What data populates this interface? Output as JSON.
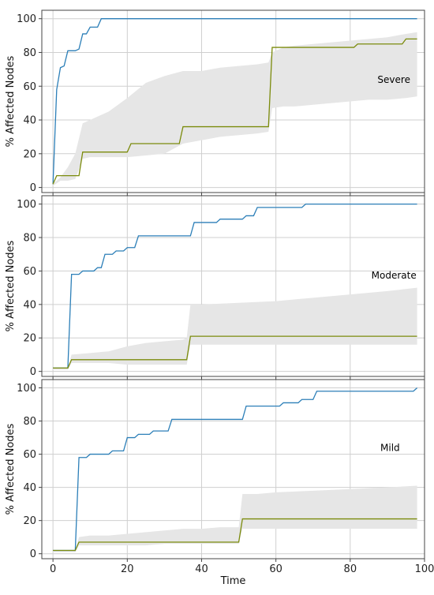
{
  "colors": {
    "blue": "#2c7fb8",
    "olive": "#7b8b0c",
    "band": "#e6e6e6",
    "grid": "#cfcfcf",
    "frame": "#444444"
  },
  "chart_data": [
    {
      "type": "line",
      "annotation": "Severe",
      "ylabel": "% Affected Nodes",
      "xlim": [
        -3,
        100
      ],
      "ylim": [
        -3,
        105
      ],
      "xticks": [
        0,
        20,
        40,
        60,
        80,
        100
      ],
      "yticks": [
        0,
        20,
        40,
        60,
        80,
        100
      ],
      "x_tick_labels_shown": false,
      "grid": true,
      "series": [
        {
          "color": "blue",
          "points": [
            [
              0,
              2
            ],
            [
              1,
              58
            ],
            [
              2,
              71
            ],
            [
              3,
              72
            ],
            [
              4,
              81
            ],
            [
              6,
              81
            ],
            [
              7,
              82
            ],
            [
              8,
              91
            ],
            [
              9,
              91
            ],
            [
              10,
              95
            ],
            [
              12,
              95
            ],
            [
              13,
              100
            ],
            [
              98,
              100
            ]
          ]
        },
        {
          "color": "olive",
          "points": [
            [
              0,
              2
            ],
            [
              1,
              7
            ],
            [
              7,
              7
            ],
            [
              8,
              21
            ],
            [
              20,
              21
            ],
            [
              21,
              26
            ],
            [
              34,
              26
            ],
            [
              35,
              36
            ],
            [
              58,
              36
            ],
            [
              59,
              83
            ],
            [
              81,
              83
            ],
            [
              82,
              85
            ],
            [
              94,
              85
            ],
            [
              95,
              88
            ],
            [
              98,
              88
            ]
          ]
        }
      ],
      "band": {
        "x": [
          0,
          2,
          4,
          6,
          8,
          10,
          15,
          20,
          25,
          30,
          35,
          40,
          45,
          50,
          55,
          58,
          59,
          62,
          65,
          70,
          75,
          80,
          85,
          90,
          95,
          98
        ],
        "upper": [
          2,
          6,
          12,
          20,
          38,
          40,
          45,
          53,
          62,
          66,
          69,
          69,
          71,
          72,
          73,
          74,
          80,
          83,
          84,
          85,
          86,
          87,
          88,
          89,
          91,
          92
        ],
        "lower": [
          1,
          4,
          4,
          5,
          17,
          18,
          18,
          18,
          19,
          20,
          26,
          28,
          30,
          31,
          32,
          33,
          47,
          48,
          48,
          49,
          50,
          51,
          52,
          52,
          53,
          54
        ]
      }
    },
    {
      "type": "line",
      "annotation": "Moderate",
      "ylabel": "% Affected Nodes",
      "xlim": [
        -3,
        100
      ],
      "ylim": [
        -3,
        105
      ],
      "xticks": [
        0,
        20,
        40,
        60,
        80,
        100
      ],
      "yticks": [
        0,
        20,
        40,
        60,
        80,
        100
      ],
      "x_tick_labels_shown": false,
      "grid": true,
      "series": [
        {
          "color": "blue",
          "points": [
            [
              0,
              2
            ],
            [
              4,
              2
            ],
            [
              5,
              58
            ],
            [
              7,
              58
            ],
            [
              8,
              60
            ],
            [
              11,
              60
            ],
            [
              12,
              62
            ],
            [
              13,
              62
            ],
            [
              14,
              70
            ],
            [
              16,
              70
            ],
            [
              17,
              72
            ],
            [
              19,
              72
            ],
            [
              20,
              74
            ],
            [
              22,
              74
            ],
            [
              23,
              81
            ],
            [
              37,
              81
            ],
            [
              38,
              89
            ],
            [
              44,
              89
            ],
            [
              45,
              91
            ],
            [
              51,
              91
            ],
            [
              52,
              93
            ],
            [
              54,
              93
            ],
            [
              55,
              98
            ],
            [
              67,
              98
            ],
            [
              68,
              100
            ],
            [
              98,
              100
            ]
          ]
        },
        {
          "color": "olive",
          "points": [
            [
              0,
              2
            ],
            [
              4,
              2
            ],
            [
              5,
              7
            ],
            [
              36,
              7
            ],
            [
              37,
              21
            ],
            [
              98,
              21
            ]
          ]
        }
      ],
      "band": {
        "x": [
          0,
          4,
          5,
          10,
          15,
          20,
          25,
          30,
          35,
          36,
          37,
          40,
          50,
          60,
          70,
          80,
          90,
          98
        ],
        "upper": [
          2,
          2,
          10,
          11,
          12,
          15,
          17,
          18,
          19,
          20,
          40,
          40,
          41,
          42,
          44,
          46,
          48,
          50
        ],
        "lower": [
          1,
          1,
          5,
          5,
          5,
          4,
          4,
          4,
          4,
          4,
          16,
          16,
          16,
          16,
          16,
          16,
          16,
          16
        ]
      }
    },
    {
      "type": "line",
      "annotation": "Mild",
      "xlabel": "Time",
      "ylabel": "% Affected Nodes",
      "xlim": [
        -3,
        100
      ],
      "ylim": [
        -3,
        105
      ],
      "xticks": [
        0,
        20,
        40,
        60,
        80,
        100
      ],
      "yticks": [
        0,
        20,
        40,
        60,
        80,
        100
      ],
      "x_tick_labels_shown": true,
      "grid": true,
      "series": [
        {
          "color": "blue",
          "points": [
            [
              0,
              2
            ],
            [
              6,
              2
            ],
            [
              7,
              58
            ],
            [
              9,
              58
            ],
            [
              10,
              60
            ],
            [
              15,
              60
            ],
            [
              16,
              62
            ],
            [
              19,
              62
            ],
            [
              20,
              70
            ],
            [
              22,
              70
            ],
            [
              23,
              72
            ],
            [
              26,
              72
            ],
            [
              27,
              74
            ],
            [
              31,
              74
            ],
            [
              32,
              81
            ],
            [
              51,
              81
            ],
            [
              52,
              89
            ],
            [
              61,
              89
            ],
            [
              62,
              91
            ],
            [
              66,
              91
            ],
            [
              67,
              93
            ],
            [
              70,
              93
            ],
            [
              71,
              98
            ],
            [
              97,
              98
            ],
            [
              98,
              100
            ]
          ]
        },
        {
          "color": "olive",
          "points": [
            [
              0,
              2
            ],
            [
              6,
              2
            ],
            [
              7,
              7
            ],
            [
              50,
              7
            ],
            [
              51,
              21
            ],
            [
              98,
              21
            ]
          ]
        }
      ],
      "band": {
        "x": [
          0,
          6,
          7,
          10,
          15,
          20,
          25,
          30,
          35,
          40,
          45,
          50,
          51,
          55,
          60,
          70,
          80,
          90,
          98
        ],
        "upper": [
          2,
          2,
          10,
          11,
          11,
          12,
          13,
          14,
          15,
          15,
          16,
          16,
          36,
          36,
          37,
          38,
          39,
          40,
          41
        ],
        "lower": [
          1,
          1,
          5,
          5,
          5,
          5,
          5,
          6,
          6,
          6,
          6,
          6,
          15,
          15,
          15,
          15,
          15,
          15,
          15
        ]
      }
    }
  ]
}
